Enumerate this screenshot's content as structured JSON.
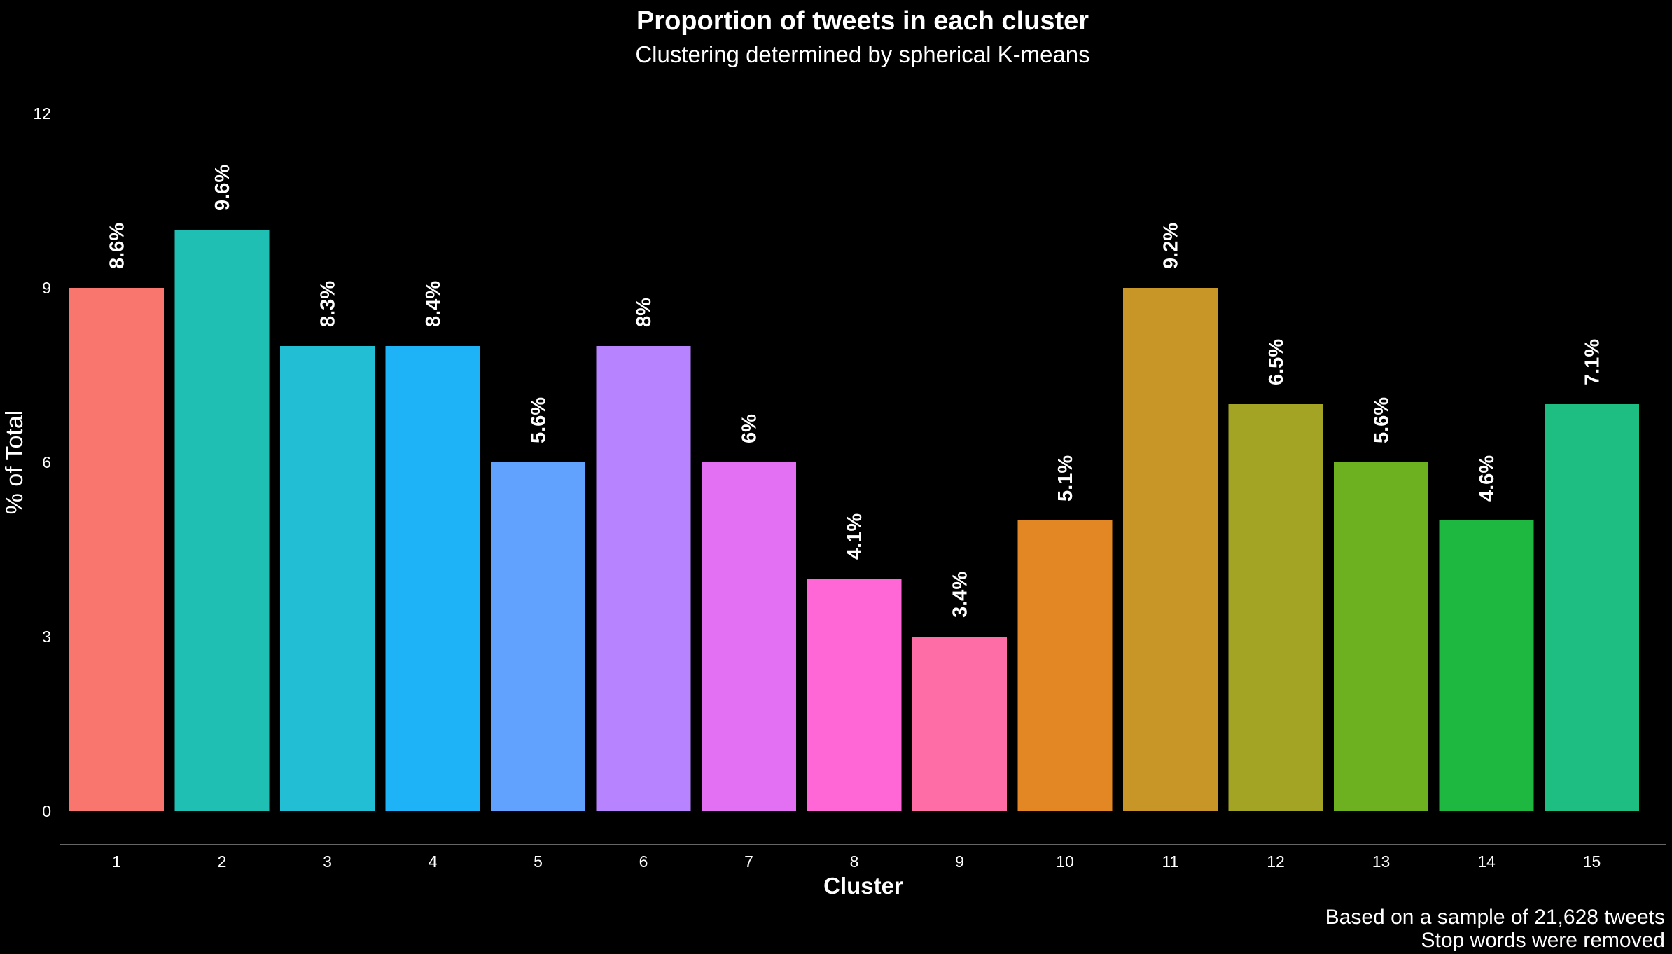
{
  "chart_data": {
    "type": "bar",
    "title": "Proportion of tweets in each cluster",
    "subtitle": "Clustering determined by spherical K-means",
    "xlabel": "Cluster",
    "ylabel": "% of Total",
    "categories": [
      "1",
      "2",
      "3",
      "4",
      "5",
      "6",
      "7",
      "8",
      "9",
      "10",
      "11",
      "12",
      "13",
      "14",
      "15"
    ],
    "values": [
      9,
      10,
      8,
      8,
      6,
      8,
      6,
      4,
      3,
      5,
      9,
      7,
      6,
      5,
      7
    ],
    "data_labels": [
      "8.6%",
      "9.6%",
      "8.3%",
      "8.4%",
      "5.6%",
      "8%",
      "6%",
      "4.1%",
      "3.4%",
      "5.1%",
      "9.2%",
      "6.5%",
      "5.6%",
      "4.6%",
      "7.1%"
    ],
    "colors": [
      "#F8766D",
      "#1FBFB4",
      "#22BED4",
      "#1EB2F6",
      "#61A2FE",
      "#B783FE",
      "#E36FF3",
      "#FE67D5",
      "#FE6DA5",
      "#E38724",
      "#C89627",
      "#A4A424",
      "#6DB121",
      "#1EB840",
      "#1EBE82"
    ],
    "ylim": [
      0,
      12
    ],
    "yticks": [
      0,
      3,
      6,
      9,
      12
    ],
    "grid": false,
    "legend": "none",
    "caption": [
      "Based on a sample of 21,628 tweets",
      "Stop words were removed"
    ]
  }
}
